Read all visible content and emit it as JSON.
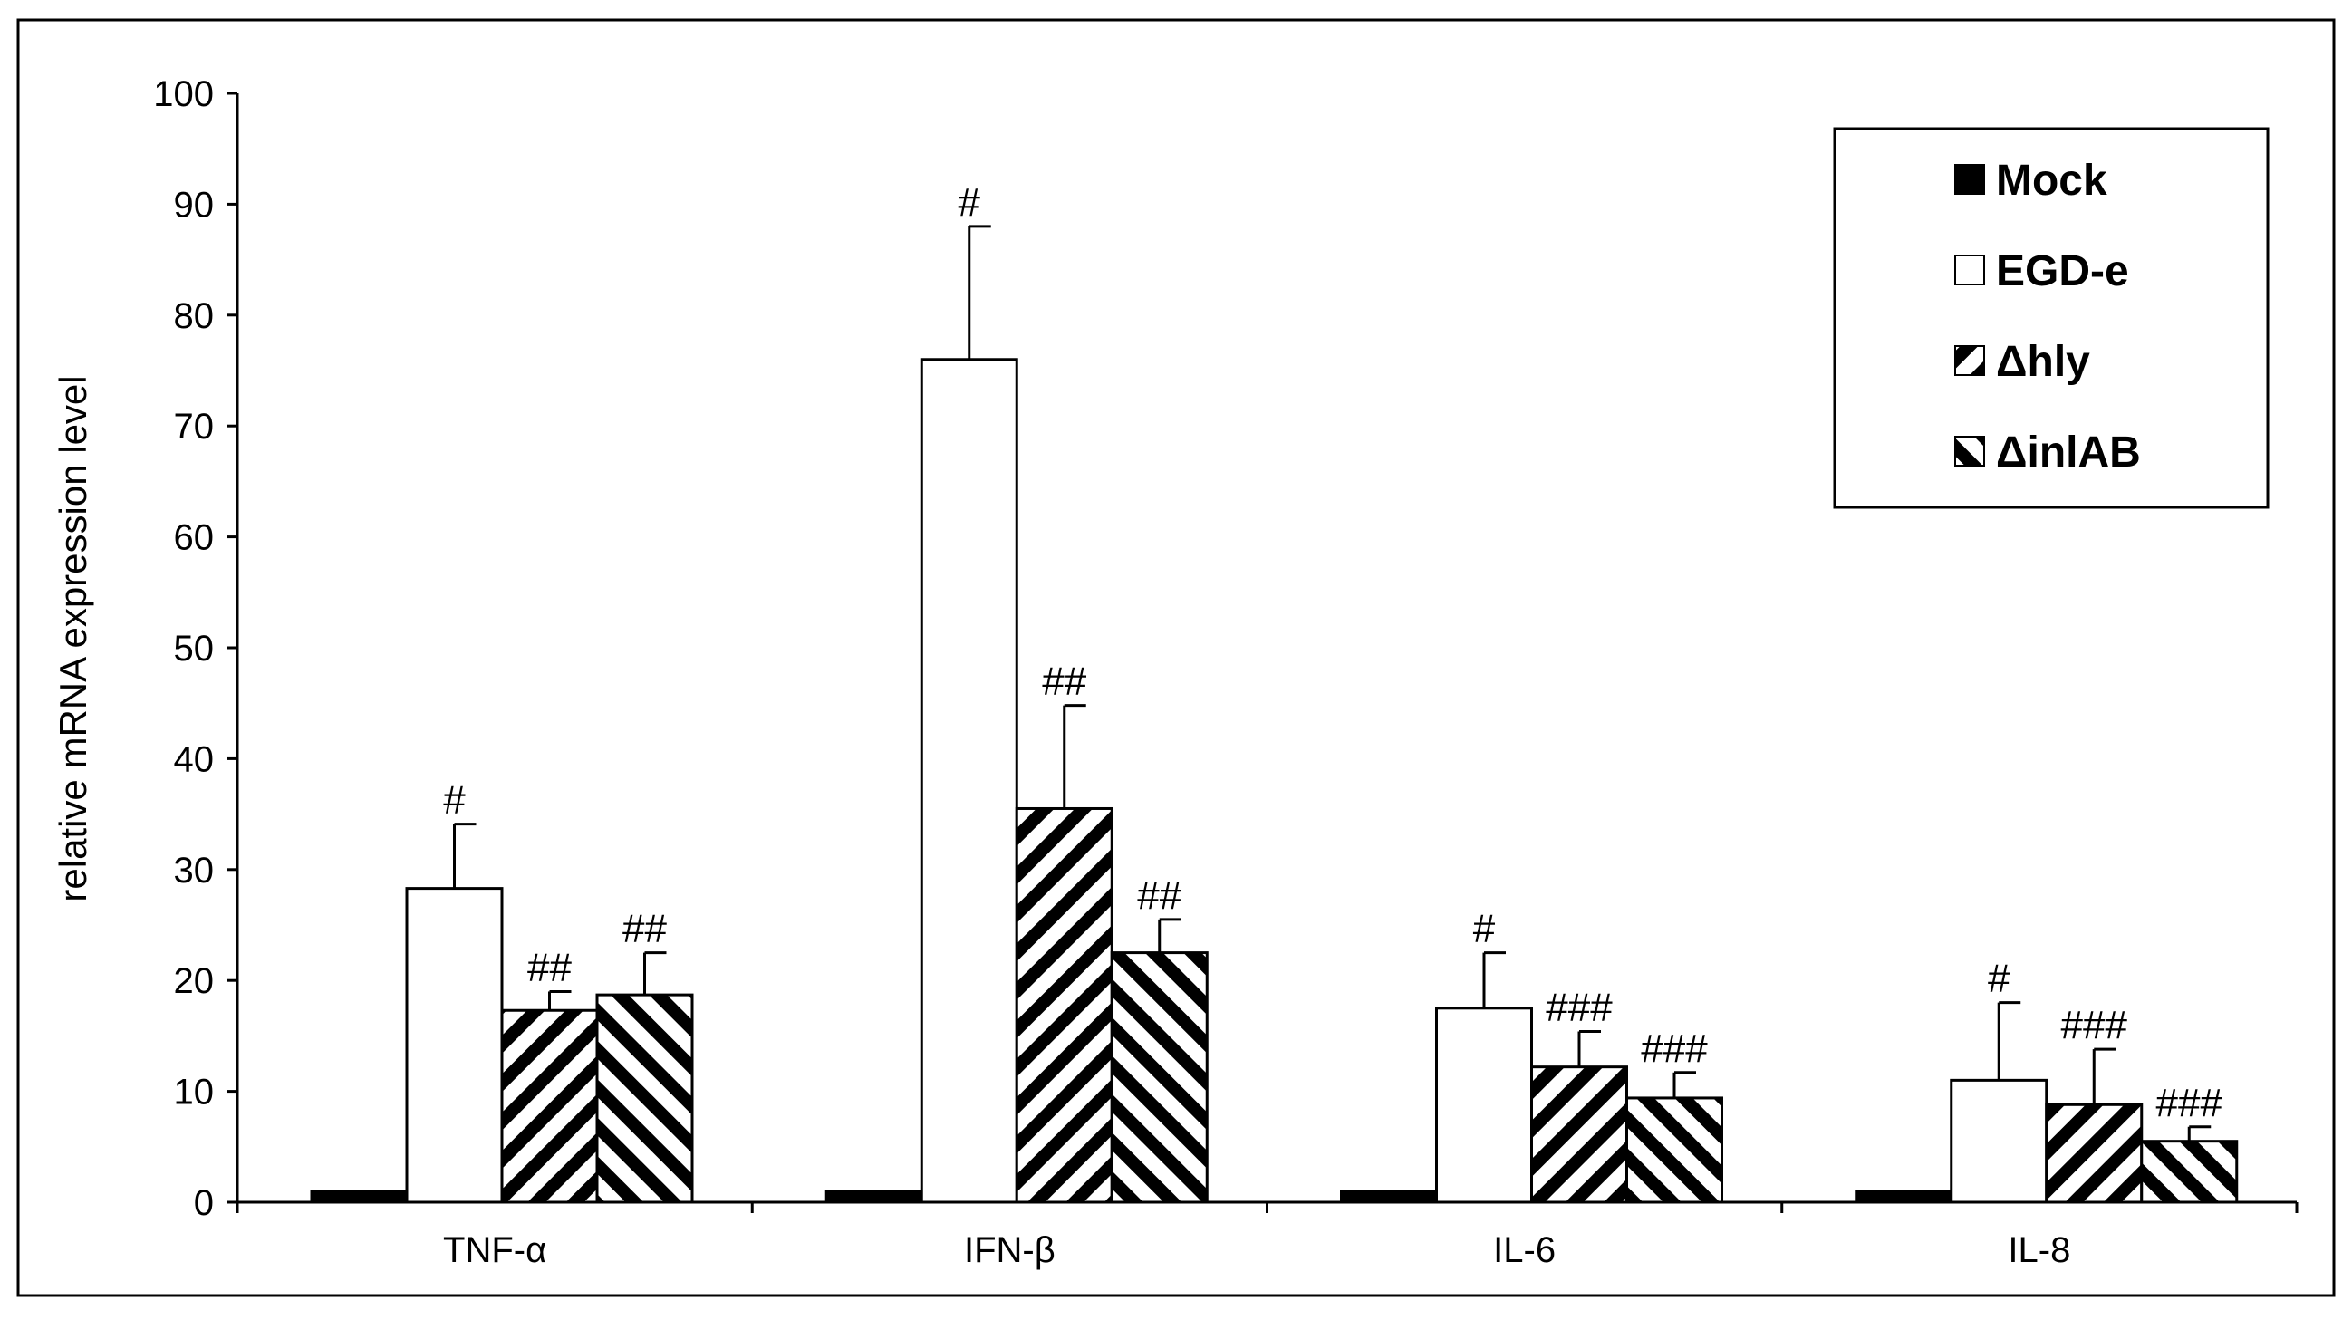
{
  "chart_data": {
    "type": "bar",
    "title": "",
    "xlabel": "",
    "ylabel": "relative mRNA expression level",
    "ylim": [
      0,
      100
    ],
    "yticks": [
      0,
      10,
      20,
      30,
      40,
      50,
      60,
      70,
      80,
      90,
      100
    ],
    "grid": false,
    "legend_position": "top-right",
    "categories": [
      "TNF-α",
      "IFN-β",
      "IL-6",
      "IL-8"
    ],
    "series": [
      {
        "name": "Mock",
        "pattern": "solid",
        "color": "#000000",
        "values": [
          1,
          1,
          1,
          1
        ],
        "errors": [
          0,
          0,
          0,
          0
        ],
        "labels": [
          "",
          "",
          "",
          ""
        ]
      },
      {
        "name": "EGD-e",
        "pattern": "empty",
        "color": "#ffffff",
        "values": [
          28.3,
          76,
          17.5,
          11
        ],
        "errors": [
          5.8,
          12,
          5,
          7
        ],
        "labels": [
          "#",
          "#",
          "#",
          "#"
        ]
      },
      {
        "name": "Δhly",
        "pattern": "diagonal-down",
        "color": "#000000",
        "values": [
          17.3,
          35.5,
          12.2,
          8.8
        ],
        "errors": [
          1.7,
          9.3,
          3.2,
          5
        ],
        "labels": [
          "##",
          "##",
          "###",
          "###"
        ]
      },
      {
        "name": "ΔinlAB",
        "pattern": "diagonal-up",
        "color": "#000000",
        "values": [
          18.7,
          22.5,
          9.4,
          5.5
        ],
        "errors": [
          3.8,
          3,
          2.3,
          1.3
        ],
        "labels": [
          "##",
          "##",
          "###",
          "###"
        ]
      }
    ]
  }
}
